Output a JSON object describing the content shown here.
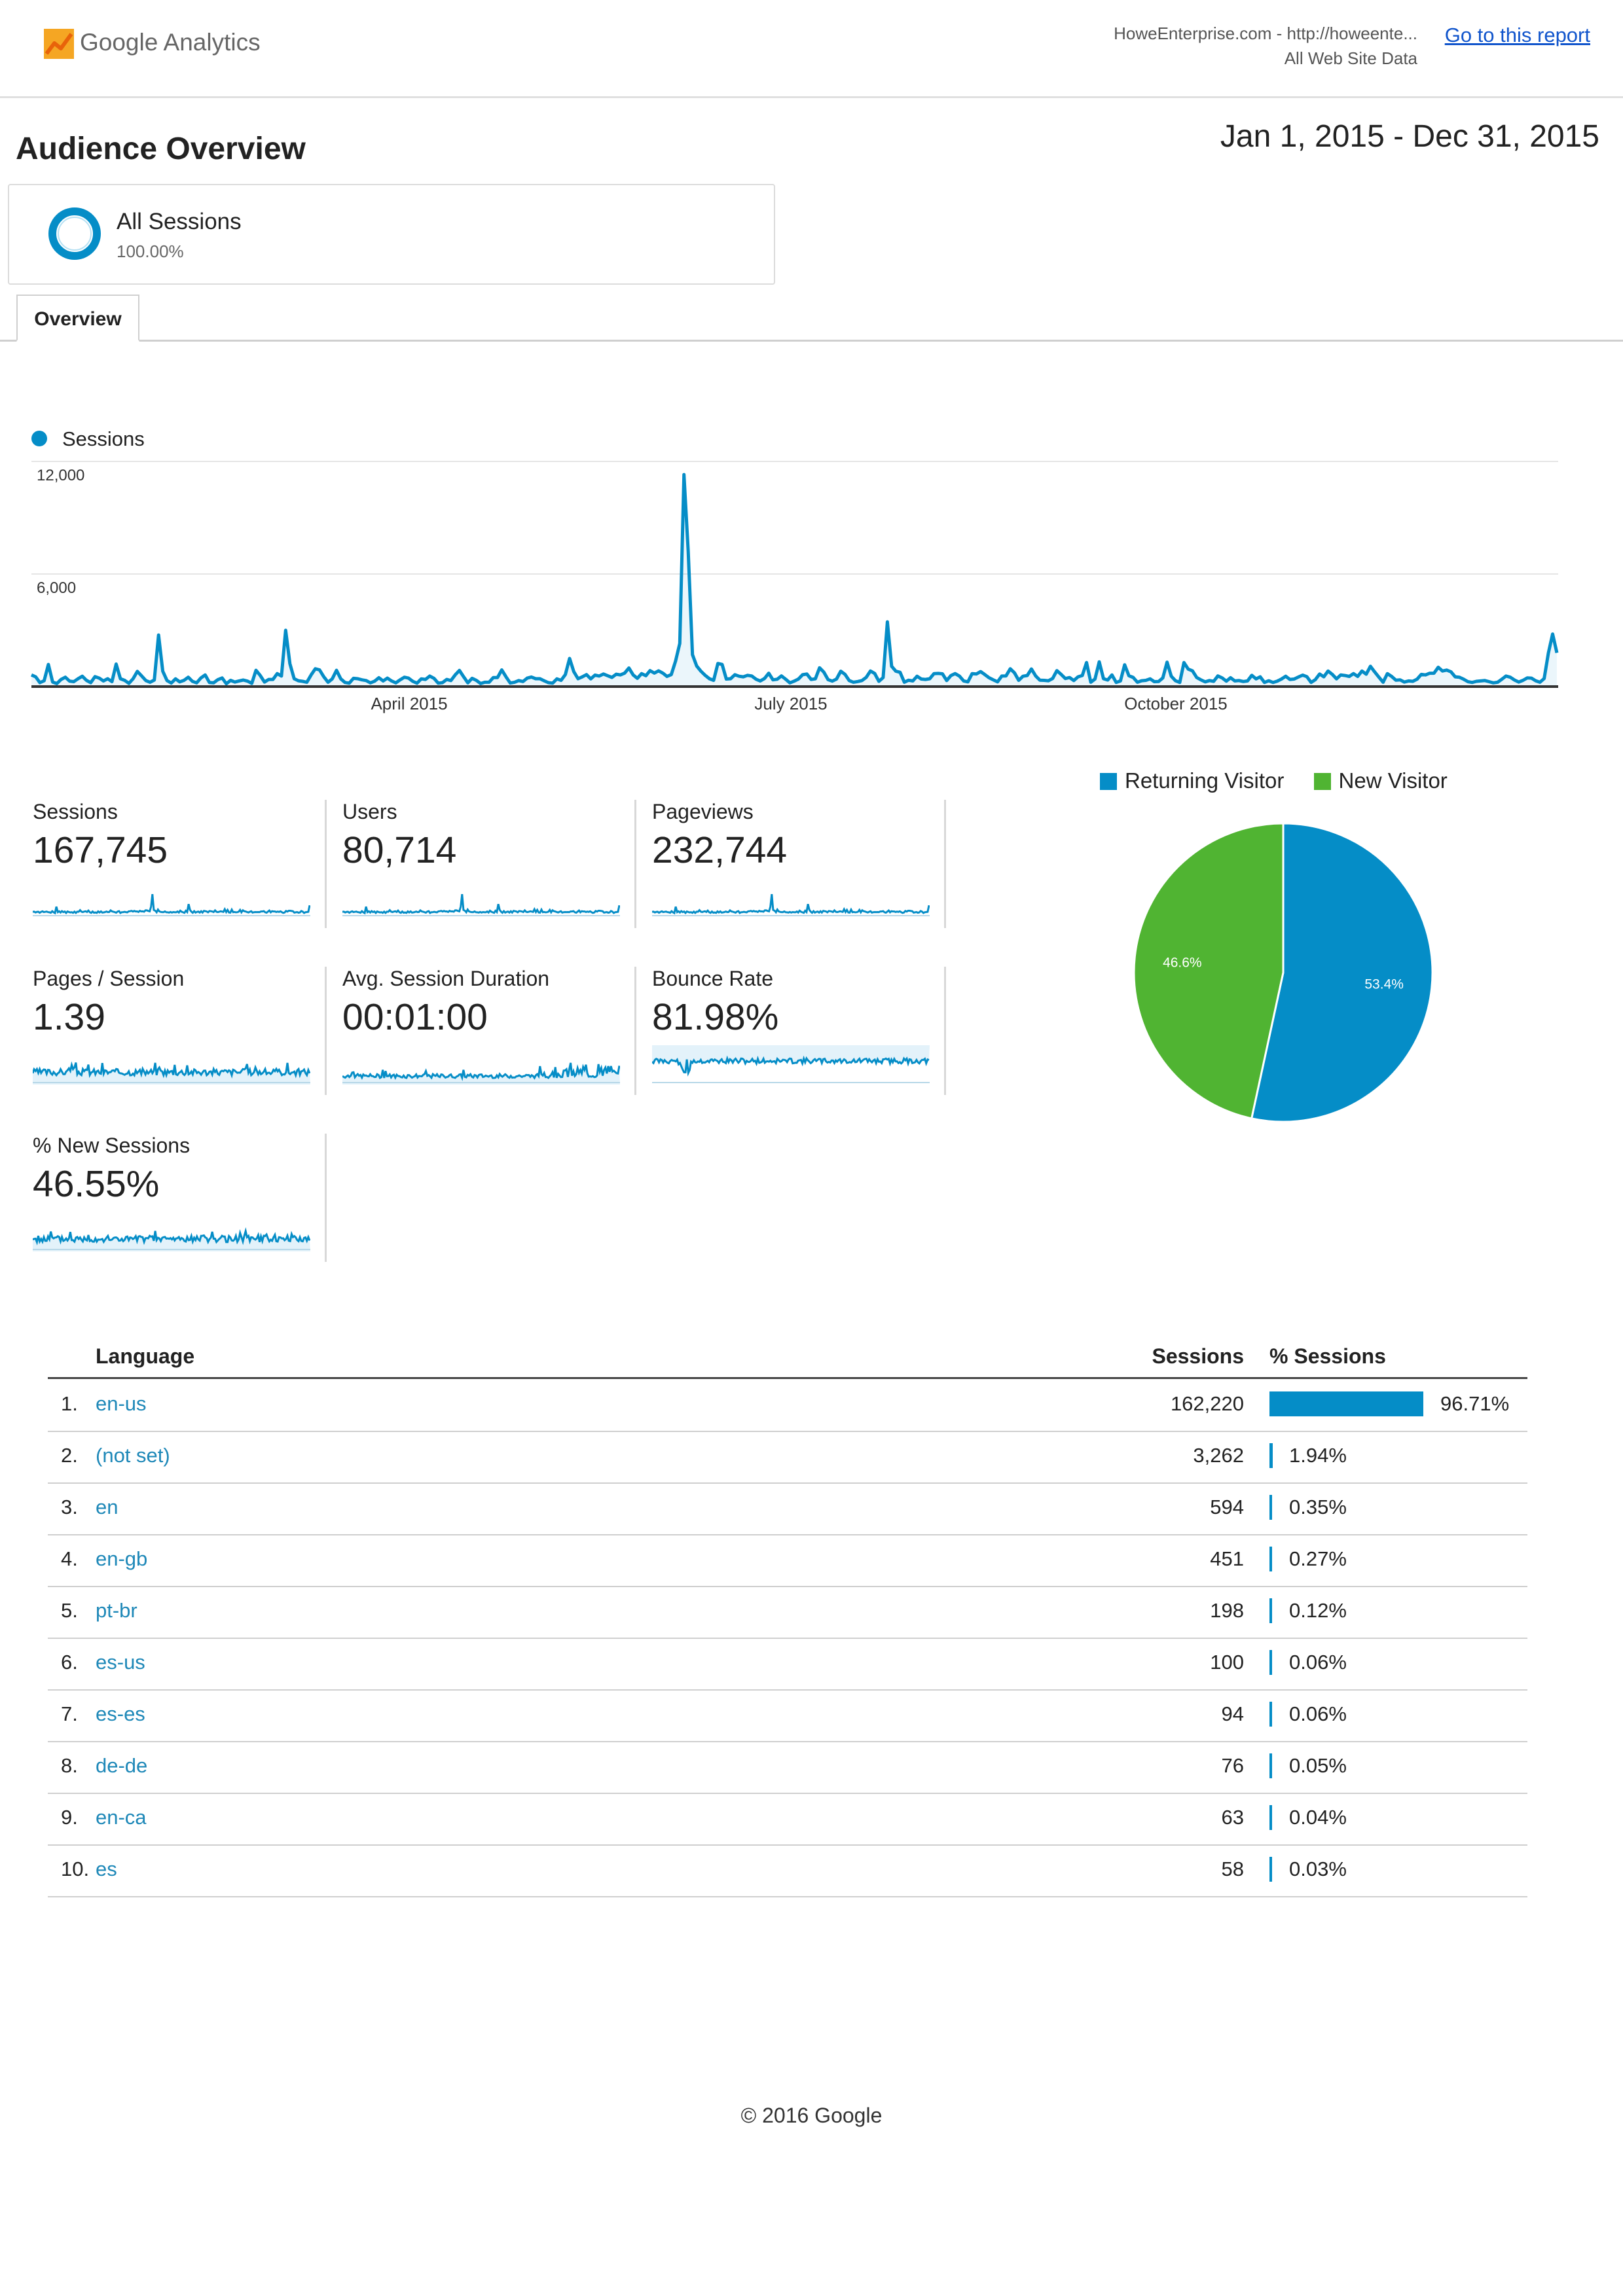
{
  "header": {
    "logo_text": "Google Analytics",
    "property": "HoweEnterprise.com - http://howeente...",
    "view": "All Web Site Data",
    "report_link": "Go to this report"
  },
  "page": {
    "title": "Audience Overview",
    "date_range": "Jan 1, 2015 - Dec 31, 2015"
  },
  "segment": {
    "name": "All Sessions",
    "percent": "100.00%"
  },
  "tabs": [
    {
      "label": "Overview"
    }
  ],
  "chart_data": {
    "type": "line",
    "title": "",
    "series": [
      {
        "name": "Sessions",
        "x_start": "2015-01-01",
        "values": [
          620,
          520,
          210,
          310,
          1180,
          240,
          160,
          380,
          500,
          290,
          260,
          420,
          550,
          330,
          210,
          530,
          450,
          300,
          420,
          260,
          1200,
          420,
          330,
          170,
          420,
          810,
          570,
          320,
          230,
          350,
          2750,
          820,
          320,
          190,
          410,
          250,
          330,
          500,
          280,
          200,
          460,
          620,
          220,
          200,
          370,
          460,
          150,
          330,
          240,
          300,
          350,
          290,
          170,
          870,
          590,
          240,
          380,
          380,
          690,
          560,
          3000,
          1220,
          420,
          310,
          280,
          230,
          620,
          950,
          890,
          520,
          230,
          410,
          870,
          410,
          220,
          180,
          440,
          420,
          360,
          320,
          200,
          290,
          470,
          300,
          450,
          300,
          200,
          360,
          500,
          450,
          280,
          180,
          410,
          380,
          560,
          440,
          180,
          210,
          380,
          320,
          620,
          860,
          520,
          200,
          440,
          330,
          160,
          230,
          230,
          480,
          480,
          890,
          520,
          190,
          230,
          320,
          270,
          450,
          510,
          420,
          420,
          310,
          210,
          180,
          410,
          330,
          640,
          1500,
          800,
          420,
          520,
          640,
          410,
          610,
          560,
          670,
          580,
          490,
          660,
          620,
          720,
          990,
          620,
          440,
          690,
          580,
          850,
          720,
          840,
          720,
          540,
          640,
          1350,
          2300,
          11300,
          7200,
          1700,
          1100,
          820,
          600,
          420,
          330,
          1230,
          1180,
          400,
          420,
          630,
          550,
          520,
          600,
          560,
          390,
          300,
          430,
          710,
          360,
          390,
          570,
          390,
          200,
          290,
          400,
          630,
          670,
          380,
          410,
          1000,
          770,
          370,
          290,
          400,
          820,
          650,
          320,
          230,
          270,
          320,
          490,
          830,
          700,
          280,
          480,
          3450,
          1080,
          820,
          760,
          230,
          340,
          300,
          550,
          400,
          380,
          420,
          690,
          700,
          680,
          320,
          590,
          690,
          560,
          300,
          250,
          690,
          670,
          800,
          640,
          470,
          360,
          250,
          560,
          570,
          950,
          730,
          330,
          550,
          590,
          940,
          570,
          340,
          330,
          310,
          430,
          850,
          650,
          430,
          480,
          320,
          520,
          590,
          1280,
          230,
          400,
          1320,
          420,
          350,
          620,
          220,
          300,
          1160,
          580,
          490,
          230,
          310,
          330,
          410,
          260,
          270,
          460,
          1300,
          550,
          310,
          220,
          1280,
          930,
          840,
          480,
          360,
          250,
          320,
          280,
          570,
          460,
          290,
          470,
          300,
          320,
          270,
          300,
          600,
          410,
          520,
          220,
          310,
          220,
          290,
          400,
          550,
          380,
          400,
          510,
          610,
          530,
          220,
          370,
          670,
          520,
          830,
          650,
          410,
          620,
          590,
          540,
          690,
          540,
          830,
          660,
          1080,
          780,
          500,
          230,
          690,
          540,
          340,
          360,
          240,
          300,
          280,
          390,
          650,
          620,
          710,
          710,
          1030,
          830,
          880,
          790,
          520,
          500,
          390,
          260,
          220,
          280,
          300,
          320,
          260,
          200,
          230,
          390,
          560,
          500,
          350,
          240,
          330,
          460,
          450,
          310,
          230,
          430,
          1800,
          2800,
          1800
        ]
      }
    ],
    "x_tick_labels": [
      "April 2015",
      "July 2015",
      "October 2015"
    ],
    "y_tick_labels": [
      "12,000",
      "6,000"
    ],
    "ylim": [
      0,
      12000
    ],
    "xlabel": "",
    "ylabel": "",
    "grid": true,
    "legend": "top-left"
  },
  "metrics": [
    {
      "label": "Sessions",
      "value": "167,745"
    },
    {
      "label": "Users",
      "value": "80,714"
    },
    {
      "label": "Pageviews",
      "value": "232,744"
    },
    {
      "label": "Pages / Session",
      "value": "1.39"
    },
    {
      "label": "Avg. Session Duration",
      "value": "00:01:00"
    },
    {
      "label": "Bounce Rate",
      "value": "81.98%"
    },
    {
      "label": "% New Sessions",
      "value": "46.55%"
    }
  ],
  "pie": {
    "type": "pie",
    "slices": [
      {
        "name": "Returning Visitor",
        "value": 53.4,
        "label": "53.4%",
        "color": "#058dc7"
      },
      {
        "name": "New Visitor",
        "value": 46.6,
        "label": "46.6%",
        "color": "#50b432"
      }
    ]
  },
  "table": {
    "headers": {
      "dimension": "Language",
      "sessions": "Sessions",
      "pct": "% Sessions"
    },
    "rows": [
      {
        "rank": "1.",
        "language": "en-us",
        "sessions": "162,220",
        "pct": "96.71%",
        "share": 96.71
      },
      {
        "rank": "2.",
        "language": "(not set)",
        "sessions": "3,262",
        "pct": "1.94%",
        "share": 1.94
      },
      {
        "rank": "3.",
        "language": "en",
        "sessions": "594",
        "pct": "0.35%",
        "share": 0.35
      },
      {
        "rank": "4.",
        "language": "en-gb",
        "sessions": "451",
        "pct": "0.27%",
        "share": 0.27
      },
      {
        "rank": "5.",
        "language": "pt-br",
        "sessions": "198",
        "pct": "0.12%",
        "share": 0.12
      },
      {
        "rank": "6.",
        "language": "es-us",
        "sessions": "100",
        "pct": "0.06%",
        "share": 0.06
      },
      {
        "rank": "7.",
        "language": "es-es",
        "sessions": "94",
        "pct": "0.06%",
        "share": 0.06
      },
      {
        "rank": "8.",
        "language": "de-de",
        "sessions": "76",
        "pct": "0.05%",
        "share": 0.05
      },
      {
        "rank": "9.",
        "language": "en-ca",
        "sessions": "63",
        "pct": "0.04%",
        "share": 0.04
      },
      {
        "rank": "10.",
        "language": "es",
        "sessions": "58",
        "pct": "0.03%",
        "share": 0.03
      }
    ]
  },
  "footer": {
    "copyright": "© 2016 Google"
  },
  "colors": {
    "sessions_line": "#058dc7",
    "returning": "#058dc7",
    "new": "#50b432",
    "link": "#1e88b8"
  }
}
